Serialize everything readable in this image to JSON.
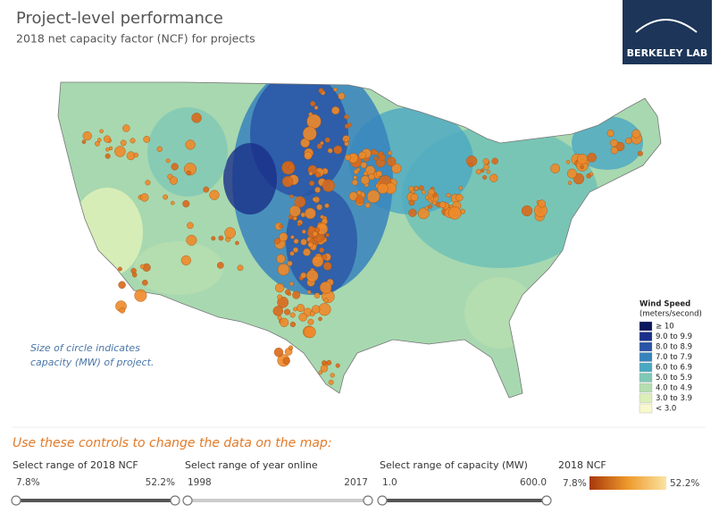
{
  "header": {
    "title": "Project-level performance",
    "subtitle": "2018 net capacity factor (NCF) for projects",
    "logo": "BERKELEY LAB"
  },
  "map": {
    "annotation_lines": [
      "Size of circle indicates",
      "capacity (MW) of project."
    ],
    "legend": {
      "title_lines": [
        "Wind Speed",
        "(meters/second)"
      ],
      "items": [
        {
          "label": "≥ 10",
          "color": "#0b165c"
        },
        {
          "label": "9.0 to 9.9",
          "color": "#1a2f8a"
        },
        {
          "label": "8.0 to 8.9",
          "color": "#2a55a6"
        },
        {
          "label": "7.0 to 7.9",
          "color": "#3784bd"
        },
        {
          "label": "6.0 to 6.9",
          "color": "#4ba8c3"
        },
        {
          "label": "5.0 to 5.9",
          "color": "#80c8b6"
        },
        {
          "label": "4.0 to 4.9",
          "color": "#b5deb0"
        },
        {
          "label": "3.0 to 3.9",
          "color": "#dcefb8"
        },
        {
          "label": "< 3.0",
          "color": "#f8f8cf"
        }
      ]
    }
  },
  "controls": {
    "heading": "Use these controls to change the data on the map:",
    "ncf": {
      "label": "Select range of 2018 NCF",
      "min": "7.8%",
      "max": "52.2%"
    },
    "year": {
      "label": "Select range of year online",
      "min": "1998",
      "max": "2017"
    },
    "capacity": {
      "label": "Select range of capacity (MW)",
      "min": "1.0",
      "max": "600.0"
    },
    "color_legend": {
      "label": "2018 NCF",
      "min": "7.8%",
      "max": "52.2%",
      "colors": [
        "#a8380a",
        "#ee9a2c",
        "#fbe3a2"
      ]
    }
  }
}
